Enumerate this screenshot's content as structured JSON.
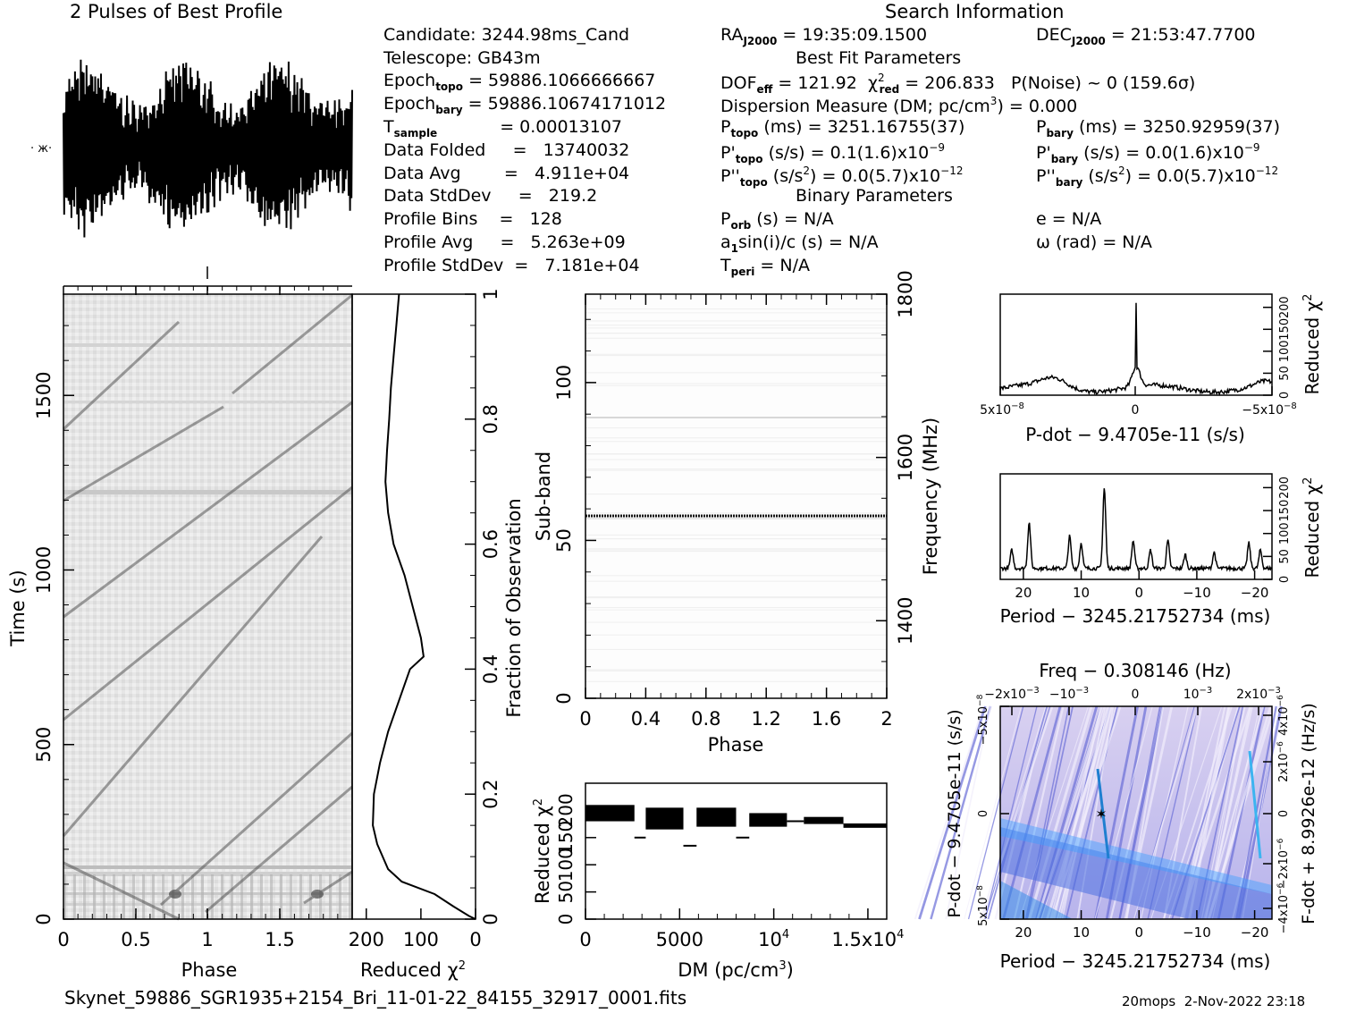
{
  "header": {
    "profile_title": "2 Pulses of Best Profile",
    "search_title": "Search Information",
    "best_fit_title": "Best Fit Parameters",
    "binary_title": "Binary Parameters"
  },
  "info": {
    "candidate": "Candidate:  3244.98ms_Cand",
    "telescope": "Telescope:  GB43m",
    "epoch_topo": "= 59886.1066666667",
    "epoch_bary": "= 59886.10674171012",
    "t_sample": "=   0.00013107",
    "data_folded": "Data Folded     =   13740032",
    "data_avg": "Data Avg        =   4.911e+04",
    "data_stddev": "Data StdDev     =   219.2",
    "profile_bins": "Profile Bins    =   128",
    "profile_avg": "Profile Avg     =   5.263e+09",
    "profile_stddev": "Profile StdDev  =   7.181e+04",
    "ra": "= 19:35:09.1500",
    "dec": "= 21:53:47.7700",
    "dof": "= 121.92",
    "chi2_val": "= 206.833",
    "p_noise": "P(Noise) ~ 0    (159.6σ)",
    "dm_line": "Dispersion Measure (DM; pc/cm",
    "dm_value": ") = 0.000",
    "p_topo": "(ms) =  3251.16755(37)",
    "p_bary": "(ms) =  3250.92959(37)",
    "pd_topo": "(s/s) =  0.1(1.6)x10",
    "pd_bary": "(s/s) = 0.0(1.6)x10",
    "pdd_topo": "(s/s",
    "pdd_bary": "(s/s",
    "pdd_topo_val": ") = 0.0(5.7)x10",
    "pdd_bary_val": ") = 0.0(5.7)x10",
    "p_orb": "(s) = N/A",
    "e": "e = N/A",
    "a1sini": "(s) = N/A",
    "omega": "ω (rad) = N/A",
    "t_peri": "= N/A"
  },
  "footer": {
    "filename": "Skynet_59886_SGR1935+2154_Bri_11-01-22_84155_32917_0001.fits",
    "stamp": "20mops  2-Nov-2022 23:18"
  },
  "chart_data": [
    {
      "type": "line",
      "title": "2 Pulses of Best Profile",
      "x_range": [
        0,
        2
      ],
      "note": "noisy oscillating profile, 2 periods"
    },
    {
      "type": "heatmap",
      "name": "time-phase",
      "xlabel": "Phase",
      "ylabel": "Time (s)",
      "xlim": [
        0,
        2
      ],
      "ylim": [
        0,
        1790
      ],
      "x_ticks": [
        "0",
        "0.5",
        "1",
        "1.5"
      ],
      "y_ticks": [
        "0",
        "500",
        "1000",
        "1500"
      ]
    },
    {
      "type": "line",
      "name": "reduced-chi2-vs-time",
      "xlabel": "Reduced χ",
      "ylabel": "Fraction of Observation",
      "x_ticks": [
        "200",
        "100",
        "0"
      ],
      "y_ticks": [
        "0",
        "0.2",
        "0.4",
        "0.6",
        "0.8",
        "1"
      ],
      "points": [
        [
          0,
          0
        ],
        [
          12,
          0.005
        ],
        [
          40,
          0.02
        ],
        [
          75,
          0.04
        ],
        [
          135,
          0.06
        ],
        [
          160,
          0.08
        ],
        [
          170,
          0.1
        ],
        [
          180,
          0.12
        ],
        [
          188,
          0.15
        ],
        [
          186,
          0.2
        ],
        [
          175,
          0.25
        ],
        [
          160,
          0.3
        ],
        [
          140,
          0.35
        ],
        [
          120,
          0.4
        ],
        [
          95,
          0.42
        ],
        [
          100,
          0.45
        ],
        [
          115,
          0.5
        ],
        [
          130,
          0.55
        ],
        [
          150,
          0.6
        ],
        [
          160,
          0.65
        ],
        [
          165,
          0.7
        ],
        [
          162,
          0.75
        ],
        [
          158,
          0.8
        ],
        [
          155,
          0.85
        ],
        [
          150,
          0.9
        ],
        [
          145,
          0.95
        ],
        [
          140,
          1.0
        ]
      ]
    },
    {
      "type": "heatmap",
      "name": "subband-phase",
      "xlabel": "Phase",
      "ylabel": "Sub-band",
      "y2label": "Frequency (MHz)",
      "x_ticks": [
        "0",
        "0.4",
        "0.8",
        "1.2",
        "1.6",
        "2"
      ],
      "y_ticks": [
        "0",
        "50",
        "100"
      ],
      "y2_ticks": [
        "1400",
        "1600",
        "1800"
      ]
    },
    {
      "type": "line",
      "name": "reduced-chi2-vs-dm",
      "xlabel": "DM (pc/cm",
      "ylabel": "Reduced χ",
      "x_ticks": [
        "0",
        "5000",
        "10",
        "1.5x10"
      ],
      "y_ticks": [
        "0",
        "50",
        "100",
        "150",
        "200"
      ],
      "xlim": [
        0,
        16000
      ]
    },
    {
      "type": "line",
      "name": "reduced-chi2-vs-pdot",
      "xlabel": "P-dot − 9.4705e-11 (s/s)",
      "ylabel": "Reduced χ",
      "x_ticks": [
        "5x10",
        "0",
        "−5x10"
      ],
      "y_ticks": [
        "0",
        "50",
        "100",
        "150",
        "200"
      ]
    },
    {
      "type": "line",
      "name": "reduced-chi2-vs-period",
      "xlabel": "Period − 3245.21752734 (ms)",
      "ylabel": "Reduced χ",
      "x_ticks": [
        "20",
        "10",
        "0",
        "−10",
        "−20"
      ],
      "y_ticks": [
        "0",
        "50",
        "100",
        "150",
        "200"
      ],
      "peaks": [
        [
          22,
          60
        ],
        [
          19,
          120
        ],
        [
          12,
          90
        ],
        [
          10,
          75
        ],
        [
          6,
          195
        ],
        [
          1,
          80
        ],
        [
          -2,
          60
        ],
        [
          -5,
          80
        ],
        [
          -8,
          50
        ],
        [
          -13,
          55
        ],
        [
          -19,
          75
        ],
        [
          -21,
          60
        ]
      ]
    },
    {
      "type": "heatmap",
      "name": "period-pdot",
      "xlabel": "Period − 3245.21752734 (ms)",
      "ylabel": "P-dot − 9.4705e-11 (s/s)",
      "x2label": "Freq − 0.308146 (Hz)",
      "y2label": "F-dot + 8.9926e-12 (Hz/s)",
      "x_ticks": [
        "20",
        "10",
        "0",
        "−10",
        "−20"
      ],
      "x2_ticks": [
        "−2x10",
        "−10",
        "0",
        "10",
        "2x10"
      ],
      "y_ticks": [
        "5x10",
        "0",
        "−5x10"
      ],
      "y2_ticks": [
        "−4x10",
        "−2x10",
        "0",
        "2x10",
        "4x10"
      ]
    }
  ]
}
